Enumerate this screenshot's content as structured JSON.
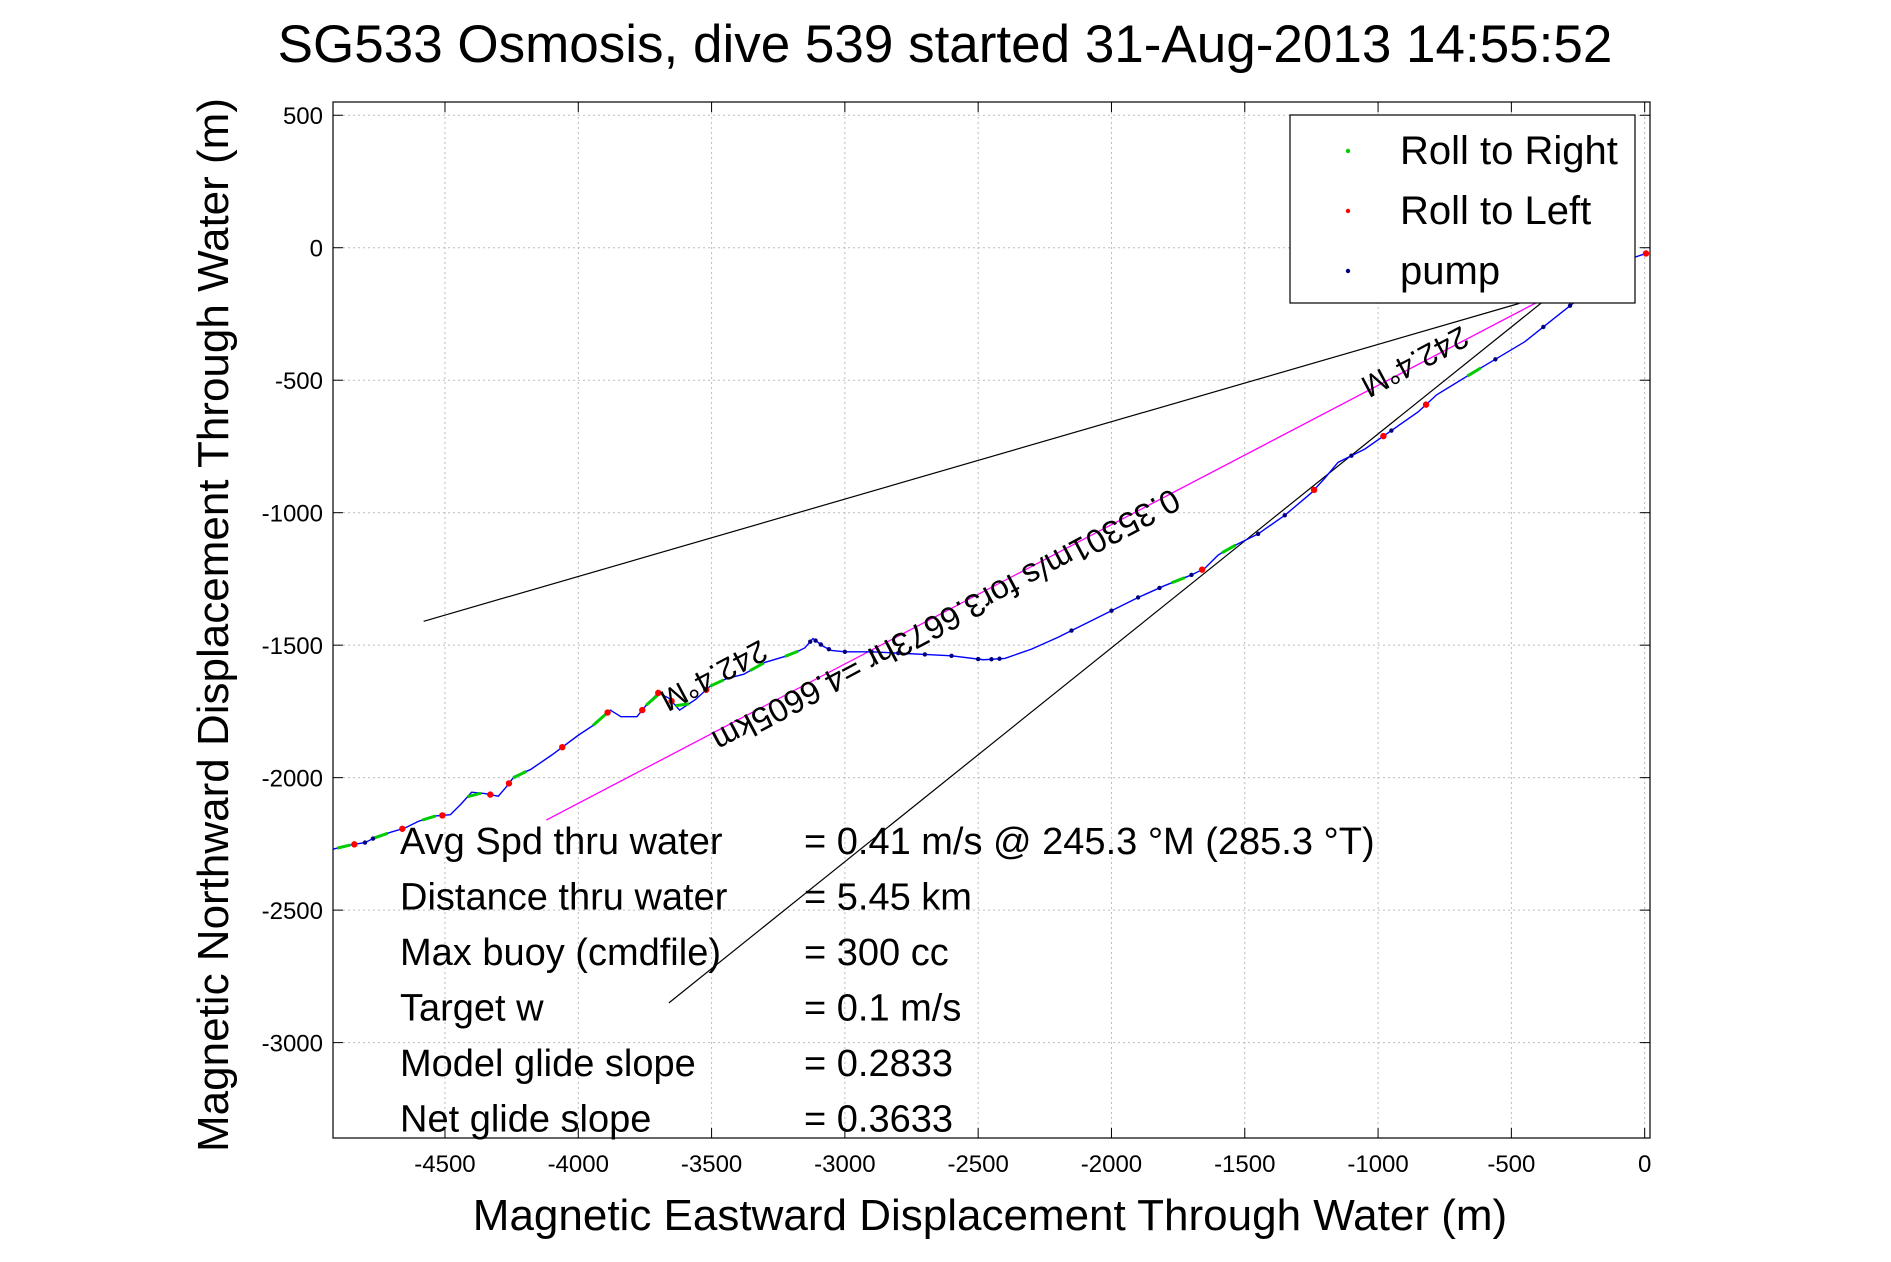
{
  "chart_data": {
    "type": "scatter",
    "title": "SG533 Osmosis, dive 539 started 31-Aug-2013 14:55:52",
    "xlabel": "Magnetic Eastward Displacement Through Water (m)",
    "ylabel": "Magnetic Northward Displacement Through Water (m)",
    "xlim": [
      -4920,
      20
    ],
    "ylim": [
      -3360,
      550
    ],
    "grid": true,
    "xticks": [
      -4500,
      -4000,
      -3500,
      -3000,
      -2500,
      -2000,
      -1500,
      -1000,
      -500,
      0
    ],
    "yticks": [
      500,
      0,
      -500,
      -1000,
      -1500,
      -2000,
      -2500,
      -3000
    ],
    "legend": {
      "placement": "top-right",
      "entries": [
        {
          "label": "Roll to Right",
          "color": "#00cc00"
        },
        {
          "label": "Roll to Left",
          "color": "#ff0000"
        },
        {
          "label": "pump",
          "color": "#000080"
        }
      ]
    },
    "colors": {
      "track": "#0000ff",
      "current": "#ff00ff",
      "cone": "#000000"
    },
    "track": [
      [
        -4920,
        -2270
      ],
      [
        -4860,
        -2255
      ],
      [
        -4800,
        -2245
      ],
      [
        -4760,
        -2225
      ],
      [
        -4700,
        -2205
      ],
      [
        -4650,
        -2190
      ],
      [
        -4600,
        -2165
      ],
      [
        -4540,
        -2145
      ],
      [
        -4480,
        -2140
      ],
      [
        -4440,
        -2100
      ],
      [
        -4400,
        -2055
      ],
      [
        -4350,
        -2060
      ],
      [
        -4300,
        -2070
      ],
      [
        -4270,
        -2035
      ],
      [
        -4240,
        -1995
      ],
      [
        -4180,
        -1970
      ],
      [
        -4100,
        -1915
      ],
      [
        -4000,
        -1840
      ],
      [
        -3940,
        -1800
      ],
      [
        -3880,
        -1745
      ],
      [
        -3840,
        -1770
      ],
      [
        -3780,
        -1770
      ],
      [
        -3740,
        -1720
      ],
      [
        -3700,
        -1680
      ],
      [
        -3660,
        -1700
      ],
      [
        -3620,
        -1745
      ],
      [
        -3560,
        -1705
      ],
      [
        -3500,
        -1650
      ],
      [
        -3440,
        -1625
      ],
      [
        -3380,
        -1610
      ],
      [
        -3300,
        -1565
      ],
      [
        -3200,
        -1535
      ],
      [
        -3150,
        -1510
      ],
      [
        -3120,
        -1475
      ],
      [
        -3080,
        -1505
      ],
      [
        -3050,
        -1520
      ],
      [
        -3000,
        -1525
      ],
      [
        -2900,
        -1525
      ],
      [
        -2800,
        -1530
      ],
      [
        -2700,
        -1535
      ],
      [
        -2600,
        -1540
      ],
      [
        -2480,
        -1555
      ],
      [
        -2400,
        -1550
      ],
      [
        -2300,
        -1515
      ],
      [
        -2200,
        -1470
      ],
      [
        -2100,
        -1420
      ],
      [
        -2000,
        -1370
      ],
      [
        -1900,
        -1320
      ],
      [
        -1800,
        -1275
      ],
      [
        -1700,
        -1235
      ],
      [
        -1650,
        -1210
      ],
      [
        -1600,
        -1160
      ],
      [
        -1550,
        -1130
      ],
      [
        -1450,
        -1080
      ],
      [
        -1350,
        -1010
      ],
      [
        -1250,
        -925
      ],
      [
        -1200,
        -870
      ],
      [
        -1150,
        -810
      ],
      [
        -1050,
        -760
      ],
      [
        -950,
        -690
      ],
      [
        -850,
        -620
      ],
      [
        -780,
        -555
      ],
      [
        -650,
        -475
      ],
      [
        -550,
        -415
      ],
      [
        -450,
        -355
      ],
      [
        -350,
        -275
      ],
      [
        -250,
        -195
      ],
      [
        -150,
        -120
      ],
      [
        -50,
        -40
      ],
      [
        10,
        -20
      ]
    ],
    "roll_right_x": [
      -4880,
      -4740,
      -4560,
      -4390,
      -4220,
      -3920,
      -3720,
      -3610,
      -3480,
      -3330,
      -3200,
      -1750,
      -1560,
      -640
    ],
    "roll_left_x": [
      -4840,
      -4660,
      -4510,
      -4330,
      -4260,
      -4060,
      -3890,
      -3760,
      -3700,
      -3650,
      -3520,
      -1660,
      -1240,
      -980,
      -820,
      -120,
      5
    ],
    "pump_x": [
      -4800,
      -4770,
      -3130,
      -3110,
      -3090,
      -3060,
      -3000,
      -2900,
      -2800,
      -2700,
      -2600,
      -2500,
      -2450,
      -2420,
      -2150,
      -2000,
      -1900,
      -1820,
      -1700,
      -1450,
      -1350,
      -1100,
      -950,
      -560,
      -380,
      -280
    ],
    "current_line": [
      [
        -4120,
        -2160
      ],
      [
        -50,
        -20
      ]
    ],
    "cone_upper": [
      [
        -4580,
        -1410
      ],
      [
        -470,
        -210
      ]
    ],
    "cone_lower": [
      [
        -3660,
        -2850
      ],
      [
        -340,
        -170
      ]
    ],
    "annotations": [
      {
        "text": "0.35301m/s for3.6673hr =4.6605km",
        "x": -2640,
        "y": -1370,
        "rotate": 152
      },
      {
        "text": "242.4°M",
        "x": -3510,
        "y": -1580,
        "rotate": 152
      },
      {
        "text": "242.4°M",
        "x": -880,
        "y": -395,
        "rotate": 152
      }
    ],
    "stats": [
      {
        "label": "Avg Spd thru water",
        "value": "=  0.41 m/s @ 245.3 °M (285.3 °T)"
      },
      {
        "label": "Distance thru water",
        "value": "=  5.45 km"
      },
      {
        "label": "Max buoy (cmdfile)",
        "value": "= 300 cc"
      },
      {
        "label": "Target w",
        "value": "= 0.1 m/s"
      },
      {
        "label": "Model glide slope",
        "value": "= 0.2833"
      },
      {
        "label": "Net glide slope",
        "value": "= 0.3633"
      }
    ]
  }
}
